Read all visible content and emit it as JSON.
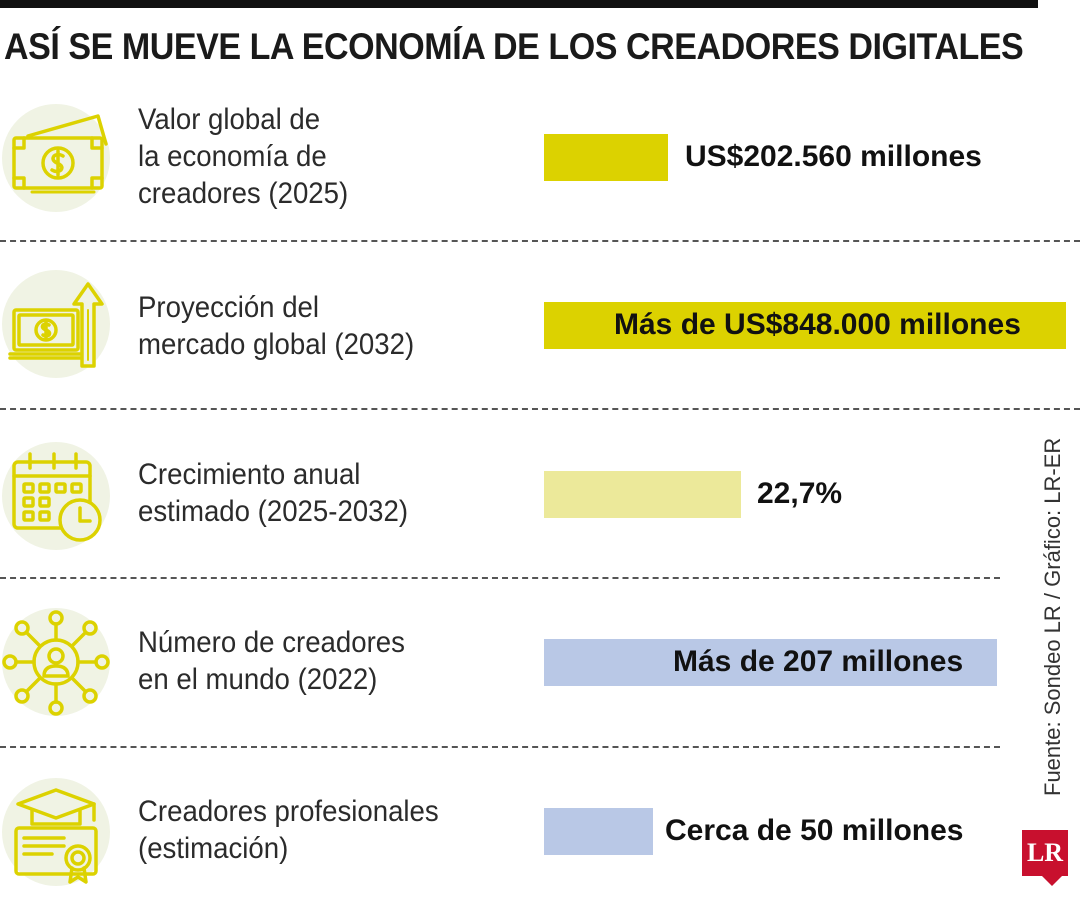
{
  "title": "ASÍ SE MUEVE LA ECONOMÍA DE LOS CREADORES DIGITALES",
  "source": "Fuente: Sondeo LR / Gráfico: LR-ER",
  "logo": "LR",
  "colors": {
    "olive": "#dcd200",
    "pale_olive": "#ece99a",
    "blue": "#b9c8e6",
    "icon": "#dcd200",
    "icon_bg": "#f0f3e4"
  },
  "chart_data": {
    "type": "bar",
    "title": "ASÍ SE MUEVE LA ECONOMÍA DE LOS CREADORES DIGITALES",
    "categories": [
      "Valor global de la economía de creadores (2025)",
      "Proyección del mercado global (2032)",
      "Crecimiento anual estimado (2025-2032)",
      "Número de creadores en el mundo (2022)",
      "Creadores profesionales (estimación)"
    ],
    "values": [
      202560,
      848000,
      22.7,
      207,
      50
    ],
    "units": [
      "millones US$",
      "millones US$",
      "%",
      "millones",
      "millones"
    ],
    "rows": [
      {
        "label": "Valor global de\nla economía de\ncreadores (2025)",
        "value_label": "US$202.560 millones",
        "icon": "money-bill-icon",
        "color": "#dcd200"
      },
      {
        "label": "Proyección del\nmercado global (2032)",
        "value_label": "Más de US$848.000 millones",
        "icon": "money-growth-icon",
        "color": "#dcd200"
      },
      {
        "label": "Crecimiento anual\nestimado (2025-2032)",
        "value_label": "22,7%",
        "icon": "calendar-clock-icon",
        "color": "#ece99a"
      },
      {
        "label": "Número de creadores\nen el mundo (2022)",
        "value_label": "Más de 207 millones",
        "icon": "network-person-icon",
        "color": "#b9c8e6"
      },
      {
        "label": "Creadores profesionales\n(estimación)",
        "value_label": "Cerca de 50 millones",
        "icon": "graduation-certificate-icon",
        "color": "#b9c8e6"
      }
    ]
  }
}
